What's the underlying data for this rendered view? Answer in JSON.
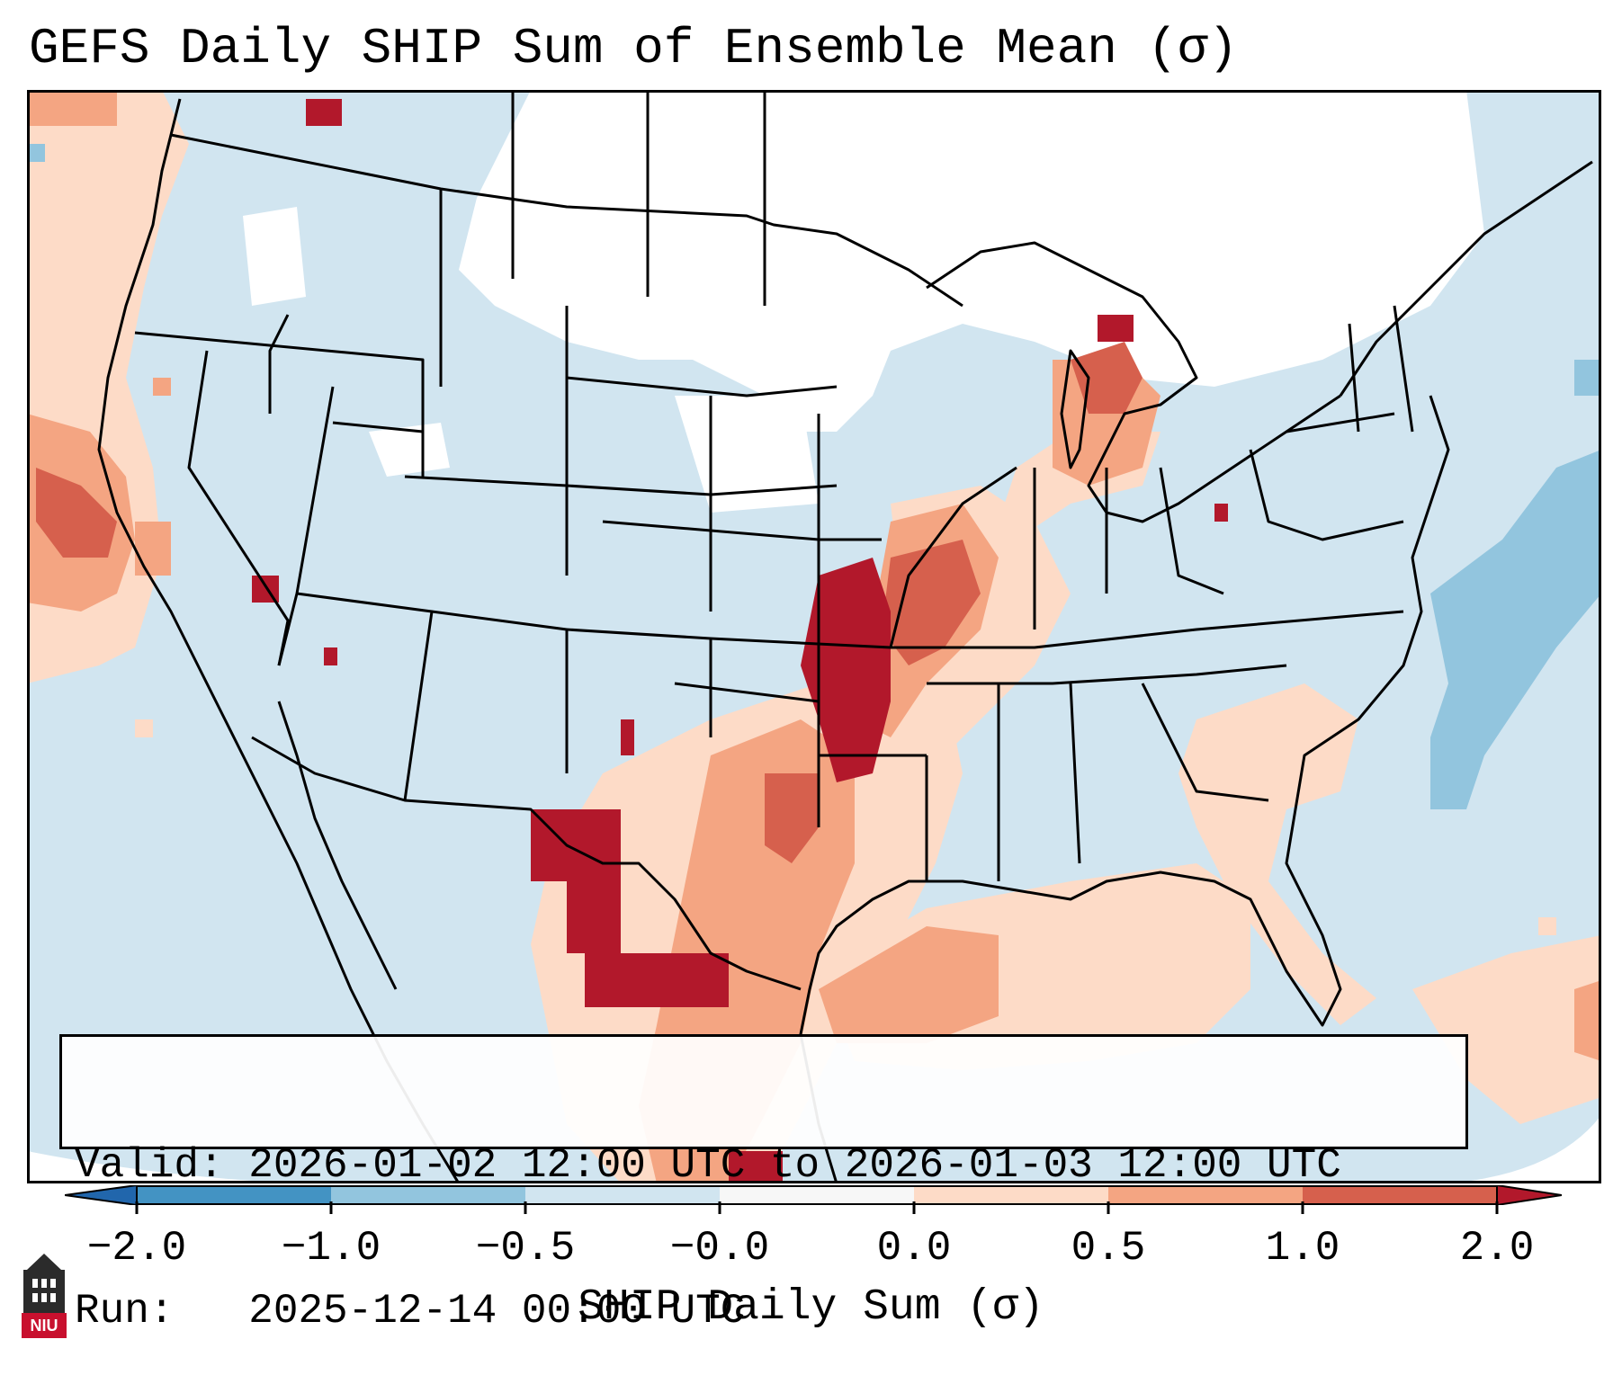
{
  "title": "GEFS Daily SHIP Sum of Ensemble Mean (σ)",
  "info": {
    "valid_line": "Valid: 2026-01-02 12:00 UTC to 2026-01-03 12:00 UTC",
    "run_line": "Run:   2025-12-14 00:00 UTC"
  },
  "colorbar": {
    "label": "SHIP Daily Sum (σ)",
    "ticks": [
      "−2.0",
      "−1.0",
      "−0.5",
      "−0.0",
      "0.0",
      "0.5",
      "1.0",
      "2.0"
    ],
    "colors": [
      "#2166ac",
      "#4393c3",
      "#92c5de",
      "#d1e5f0",
      "#f7f7f7",
      "#fddbc7",
      "#f4a582",
      "#d6604d",
      "#b2182b"
    ]
  },
  "map_colors": {
    "ocean_background": "#d1e5f0",
    "near_zero": "#ffffff",
    "low_positive": "#fddbc7",
    "mid_positive": "#f4a582",
    "high_positive": "#d6604d",
    "very_high_positive": "#b2182b",
    "low_negative": "#92c5de",
    "borders": "#000000"
  },
  "logo": {
    "text": "NIU",
    "icon": "niu-tower-icon",
    "color": "#c8102e"
  }
}
